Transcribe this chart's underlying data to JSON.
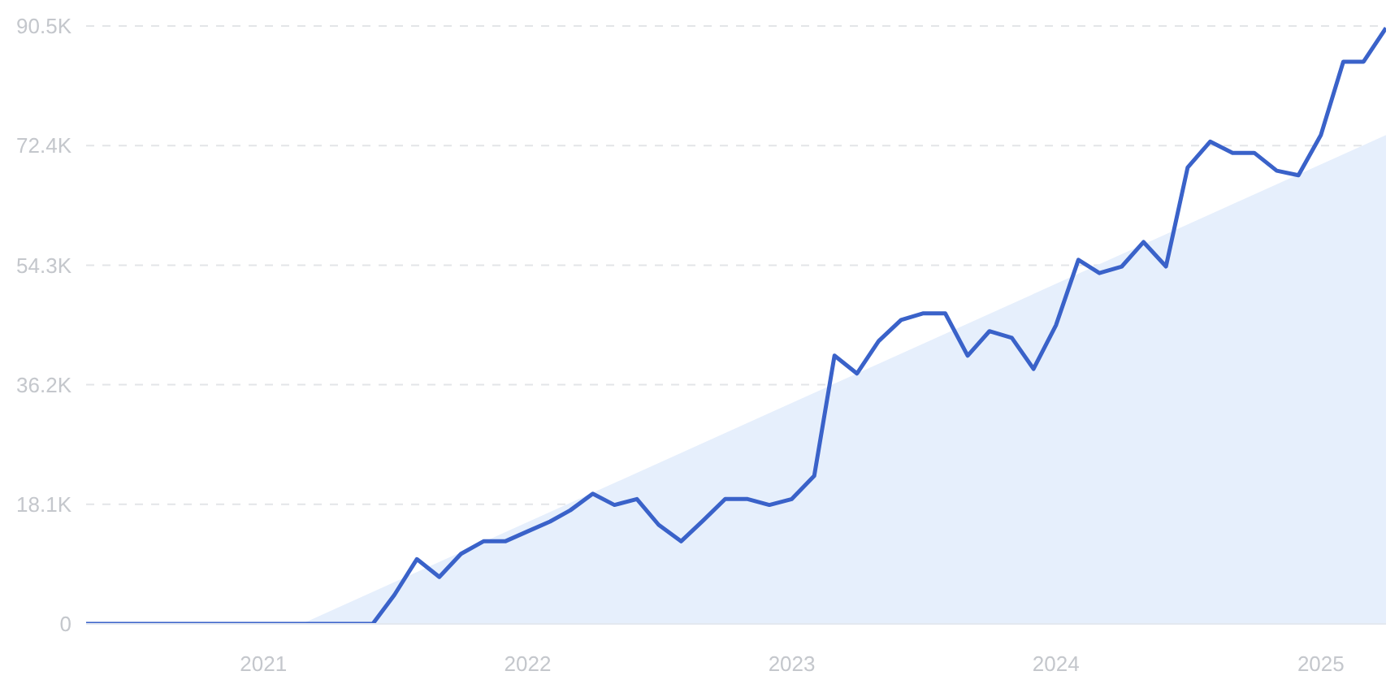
{
  "chart_data": {
    "type": "line",
    "x": [
      "2020-05",
      "2020-06",
      "2020-07",
      "2020-08",
      "2020-09",
      "2020-10",
      "2020-11",
      "2020-12",
      "2021-01",
      "2021-02",
      "2021-03",
      "2021-04",
      "2021-05",
      "2021-06",
      "2021-07",
      "2021-08",
      "2021-09",
      "2021-10",
      "2021-11",
      "2021-12",
      "2022-01",
      "2022-02",
      "2022-03",
      "2022-04",
      "2022-05",
      "2022-06",
      "2022-07",
      "2022-08",
      "2022-09",
      "2022-10",
      "2022-11",
      "2022-12",
      "2023-01",
      "2023-02",
      "2023-03",
      "2023-04",
      "2023-05",
      "2023-06",
      "2023-07",
      "2023-08",
      "2023-09",
      "2023-10",
      "2023-11",
      "2023-12",
      "2024-01",
      "2024-02",
      "2024-03",
      "2024-04",
      "2024-05",
      "2024-06",
      "2024-07",
      "2024-08",
      "2024-09",
      "2024-10",
      "2024-11",
      "2024-12",
      "2025-01",
      "2025-02",
      "2025-03",
      "2025-04"
    ],
    "series": [
      {
        "type": "area",
        "color": "#e6effc",
        "x": [
          "2021-02-23",
          "2025-04"
        ],
        "values": [
          0,
          74000
        ]
      },
      {
        "color": "#3a62c9",
        "values": [
          0,
          0,
          0,
          0,
          0,
          0,
          0,
          0,
          0,
          0,
          0,
          0,
          0,
          0,
          4400,
          9800,
          7100,
          10600,
          12500,
          12500,
          14000,
          15500,
          17200,
          19700,
          18000,
          18900,
          15000,
          12500,
          15700,
          18900,
          18900,
          18000,
          18900,
          22400,
          40600,
          37900,
          42800,
          46000,
          47000,
          47000,
          40600,
          44300,
          43300,
          38600,
          45200,
          55100,
          53100,
          54100,
          57800,
          54100,
          69100,
          73000,
          71300,
          71300,
          68600,
          67900,
          74000,
          85100,
          85100,
          90200
        ]
      }
    ],
    "xlim": [
      "2020-05",
      "2025-04"
    ],
    "xticks": [
      "2021",
      "2022",
      "2023",
      "2024",
      "2025"
    ],
    "ylim": [
      0,
      90500
    ],
    "yticks": [
      0,
      {
        "value": 18100,
        "label": "18.1K"
      },
      {
        "value": 36200,
        "label": "36.2K"
      },
      {
        "value": 54300,
        "label": "54.3K"
      },
      {
        "value": 72400,
        "label": "72.4K"
      },
      {
        "value": 90500,
        "label": "90.5K"
      }
    ],
    "grid": "y",
    "line_style": "solid",
    "marker": "none",
    "legend": false
  }
}
